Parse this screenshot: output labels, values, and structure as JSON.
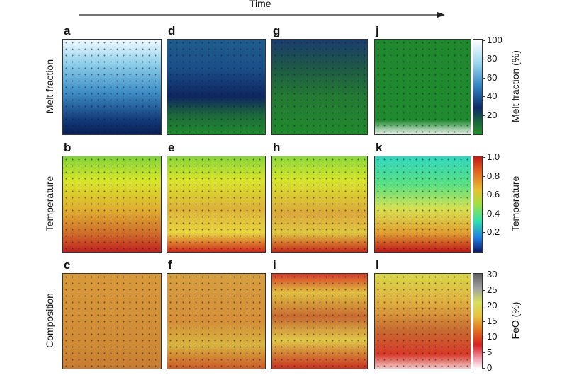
{
  "header": {
    "arrow_label": "Time"
  },
  "rows": [
    {
      "label": "Melt fraction",
      "panels": [
        "a",
        "d",
        "g",
        "j"
      ],
      "colorbar": {
        "title": "Melt fraction (%)",
        "ticks": [
          "100",
          "80",
          "60",
          "40",
          "20"
        ]
      }
    },
    {
      "label": "Temperature",
      "panels": [
        "b",
        "e",
        "h",
        "k"
      ],
      "colorbar": {
        "title": "Temperature",
        "ticks": [
          "1.0",
          "0.8",
          "0.6",
          "0.4",
          "0.2"
        ]
      }
    },
    {
      "label": "Composition",
      "panels": [
        "c",
        "f",
        "i",
        "l"
      ],
      "colorbar": {
        "title": "FeO (%)",
        "ticks": [
          "30",
          "25",
          "20",
          "15",
          "10",
          "5",
          "0"
        ]
      }
    }
  ]
}
